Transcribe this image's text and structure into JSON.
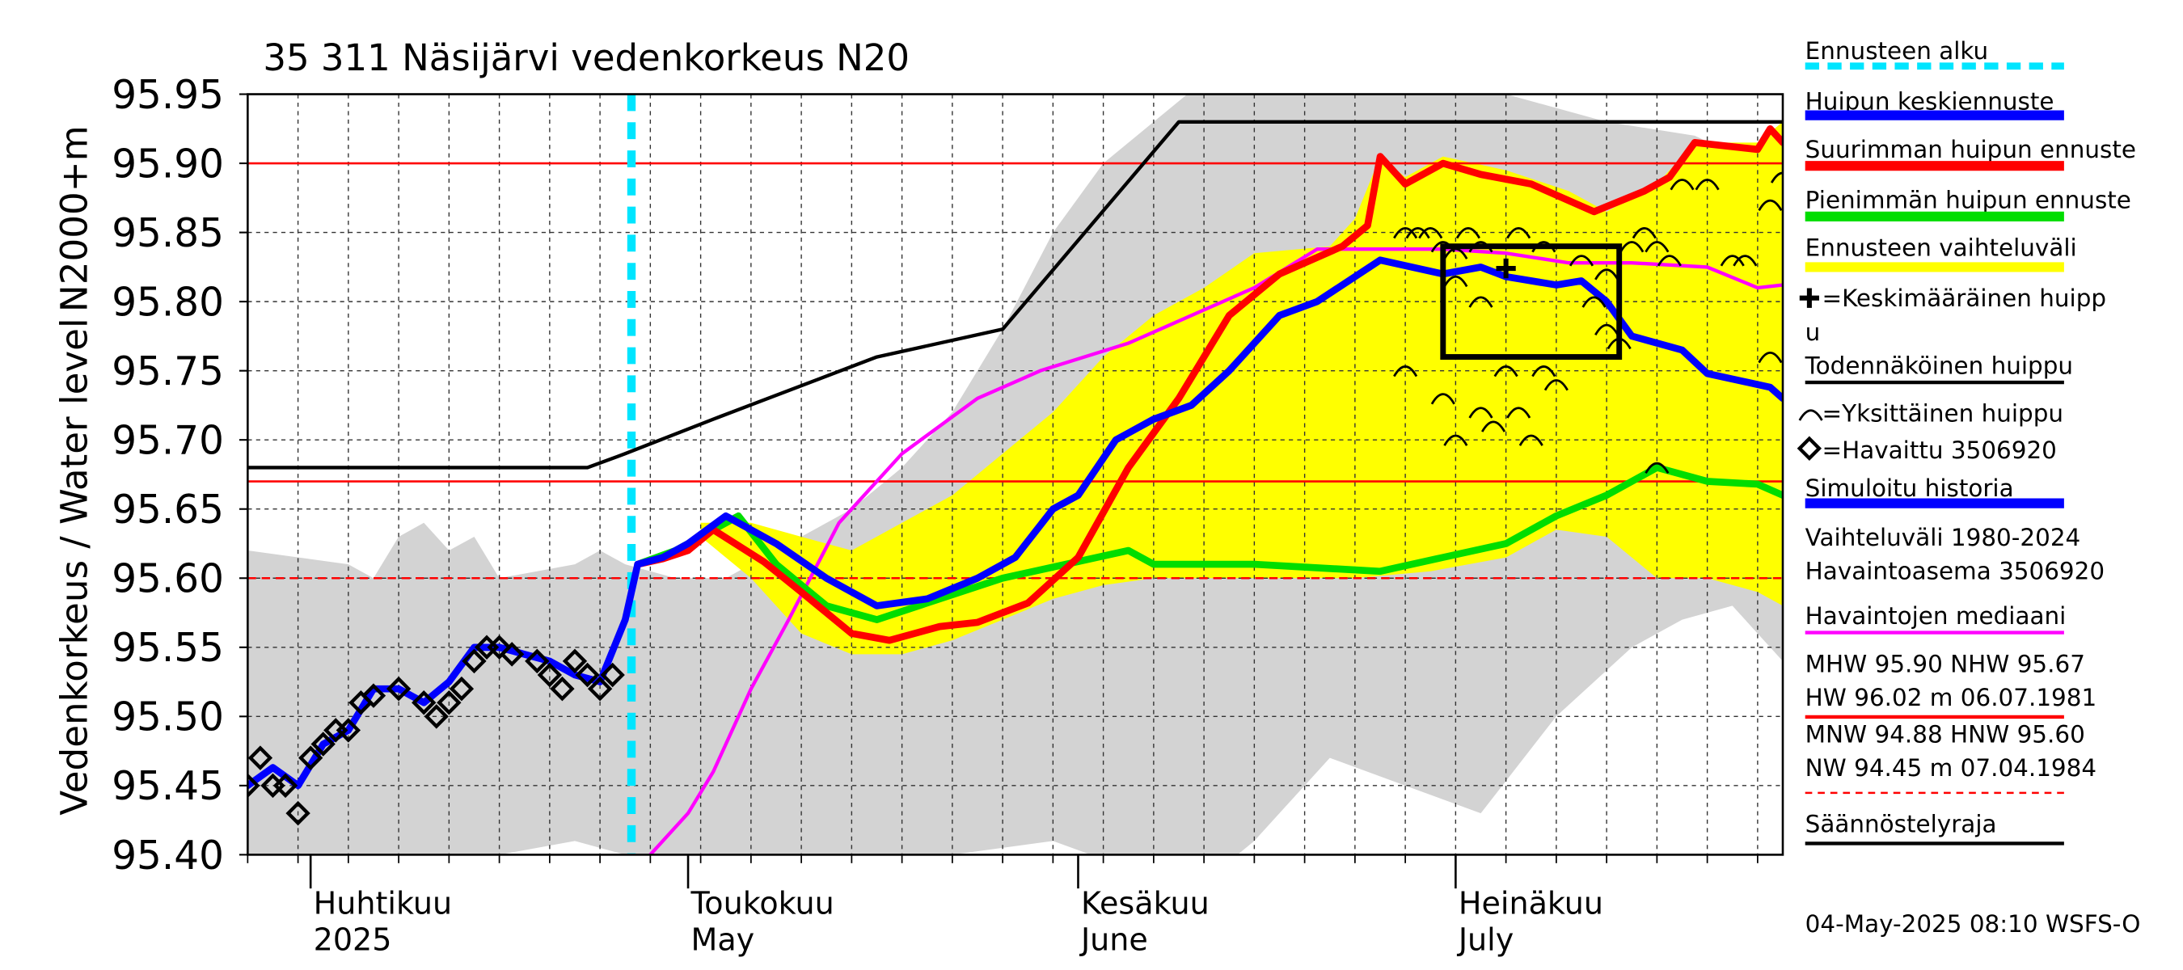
{
  "chart_data": {
    "type": "line",
    "title": "35 311 Näsijärvi vedenkorkeus N20",
    "ylabel_left": "Vedenkorkeus / Water level",
    "ylabel_right": "N2000+m",
    "ylim": [
      95.4,
      95.95
    ],
    "yticks": [
      "95.40",
      "95.45",
      "95.50",
      "95.55",
      "95.60",
      "95.65",
      "95.70",
      "95.75",
      "95.80",
      "95.85",
      "95.90",
      "95.95"
    ],
    "xlim_days": [
      0,
      122
    ],
    "x_unit": "days since 2025-03-27",
    "month_starts": [
      5,
      35,
      66,
      96
    ],
    "month_labels_fi": [
      "Huhtikuu",
      "Toukokuu",
      "Kesäkuu",
      "Heinäkuu"
    ],
    "month_labels_en": [
      "2025",
      "May",
      "June",
      "July"
    ],
    "forecast_start_day": 30.5,
    "ref_lines": {
      "MHW": 95.9,
      "NHW": 95.67,
      "HNW": 95.6
    },
    "series": [
      {
        "name": "Simuloitu historia",
        "color": "#0000ff",
        "points": [
          [
            0,
            95.45
          ],
          [
            2,
            95.463
          ],
          [
            4,
            95.45
          ],
          [
            6,
            95.48
          ],
          [
            8,
            95.49
          ],
          [
            10,
            95.52
          ],
          [
            12,
            95.52
          ],
          [
            14,
            95.51
          ],
          [
            16,
            95.525
          ],
          [
            18,
            95.55
          ],
          [
            20,
            95.55
          ],
          [
            22,
            95.545
          ],
          [
            24,
            95.54
          ],
          [
            26,
            95.53
          ],
          [
            28,
            95.525
          ],
          [
            30,
            95.57
          ],
          [
            31,
            95.61
          ],
          [
            33,
            95.615
          ],
          [
            35,
            95.625
          ],
          [
            38,
            95.645
          ],
          [
            42,
            95.625
          ],
          [
            46,
            95.6
          ],
          [
            50,
            95.58
          ],
          [
            54,
            95.585
          ],
          [
            58,
            95.6
          ],
          [
            61,
            95.615
          ],
          [
            64,
            95.65
          ],
          [
            66,
            95.66
          ],
          [
            69,
            95.7
          ],
          [
            72,
            95.715
          ],
          [
            75,
            95.725
          ],
          [
            78,
            95.75
          ],
          [
            82,
            95.79
          ],
          [
            85,
            95.8
          ],
          [
            90,
            95.83
          ],
          [
            95,
            95.82
          ],
          [
            98,
            95.825
          ],
          [
            100,
            95.818
          ],
          [
            104,
            95.812
          ],
          [
            106,
            95.815
          ],
          [
            108,
            95.8
          ],
          [
            110,
            95.775
          ],
          [
            114,
            95.765
          ],
          [
            116,
            95.748
          ],
          [
            121,
            95.738
          ],
          [
            122,
            95.73
          ]
        ]
      },
      {
        "name": "Suurimman huipun ennuste",
        "color": "#ff0000",
        "points": [
          [
            31,
            95.61
          ],
          [
            33,
            95.614
          ],
          [
            35,
            95.62
          ],
          [
            37,
            95.635
          ],
          [
            41,
            95.612
          ],
          [
            44,
            95.59
          ],
          [
            48,
            95.56
          ],
          [
            51,
            95.555
          ],
          [
            55,
            95.565
          ],
          [
            58,
            95.568
          ],
          [
            62,
            95.582
          ],
          [
            66,
            95.615
          ],
          [
            70,
            95.68
          ],
          [
            74,
            95.73
          ],
          [
            78,
            95.79
          ],
          [
            82,
            95.82
          ],
          [
            87,
            95.84
          ],
          [
            89,
            95.855
          ],
          [
            90,
            95.905
          ],
          [
            92,
            95.885
          ],
          [
            95,
            95.9
          ],
          [
            98,
            95.892
          ],
          [
            102,
            95.885
          ],
          [
            107,
            95.865
          ],
          [
            111,
            95.88
          ],
          [
            113,
            95.89
          ],
          [
            115,
            95.915
          ],
          [
            120,
            95.91
          ],
          [
            121,
            95.925
          ],
          [
            122,
            95.915
          ]
        ]
      },
      {
        "name": "Pienimmän huipun ennuste",
        "color": "#00dd00",
        "points": [
          [
            31,
            95.61
          ],
          [
            34,
            95.62
          ],
          [
            36,
            95.63
          ],
          [
            39,
            95.645
          ],
          [
            42,
            95.61
          ],
          [
            46,
            95.58
          ],
          [
            50,
            95.57
          ],
          [
            55,
            95.585
          ],
          [
            60,
            95.6
          ],
          [
            65,
            95.61
          ],
          [
            70,
            95.62
          ],
          [
            72,
            95.61
          ],
          [
            80,
            95.61
          ],
          [
            90,
            95.605
          ],
          [
            95,
            95.615
          ],
          [
            100,
            95.625
          ],
          [
            104,
            95.645
          ],
          [
            108,
            95.66
          ],
          [
            112,
            95.68
          ],
          [
            116,
            95.67
          ],
          [
            120,
            95.668
          ],
          [
            122,
            95.66
          ]
        ]
      },
      {
        "name": "Havaintojen mediaani",
        "color": "#ff00ff",
        "points": [
          [
            31,
            95.39
          ],
          [
            35,
            95.43
          ],
          [
            37,
            95.46
          ],
          [
            40,
            95.52
          ],
          [
            43,
            95.57
          ],
          [
            47,
            95.64
          ],
          [
            52,
            95.69
          ],
          [
            58,
            95.73
          ],
          [
            63,
            95.75
          ],
          [
            70,
            95.77
          ],
          [
            80,
            95.81
          ],
          [
            85,
            95.838
          ],
          [
            95,
            95.838
          ],
          [
            100,
            95.835
          ],
          [
            105,
            95.828
          ],
          [
            110,
            95.828
          ],
          [
            116,
            95.825
          ],
          [
            120,
            95.81
          ],
          [
            122,
            95.812
          ]
        ]
      },
      {
        "name": "Todennäköinen huippu",
        "color": "#000000",
        "points": [
          [
            0,
            95.68
          ],
          [
            27,
            95.68
          ],
          [
            30,
            95.69
          ],
          [
            37,
            95.715
          ],
          [
            50,
            95.76
          ],
          [
            60,
            95.78
          ],
          [
            74,
            95.93
          ],
          [
            122,
            95.93
          ]
        ]
      }
    ],
    "observed": {
      "name": "Havaittu 3506920",
      "points": [
        [
          0,
          95.45
        ],
        [
          1,
          95.47
        ],
        [
          2,
          95.45
        ],
        [
          3,
          95.45
        ],
        [
          4,
          95.43
        ],
        [
          5,
          95.47
        ],
        [
          6,
          95.48
        ],
        [
          7,
          95.49
        ],
        [
          8,
          95.49
        ],
        [
          9,
          95.51
        ],
        [
          10,
          95.515
        ],
        [
          12,
          95.52
        ],
        [
          14,
          95.51
        ],
        [
          15,
          95.5
        ],
        [
          16,
          95.51
        ],
        [
          17,
          95.52
        ],
        [
          18,
          95.54
        ],
        [
          19,
          95.55
        ],
        [
          20,
          95.55
        ],
        [
          21,
          95.545
        ],
        [
          23,
          95.54
        ],
        [
          24,
          95.53
        ],
        [
          25,
          95.52
        ],
        [
          26,
          95.54
        ],
        [
          27,
          95.53
        ],
        [
          28,
          95.52
        ],
        [
          29,
          95.53
        ]
      ]
    },
    "individual_peaks": [
      [
        92,
        95.85
      ],
      [
        93,
        95.85
      ],
      [
        94,
        95.85
      ],
      [
        95,
        95.84
      ],
      [
        96,
        95.835
      ],
      [
        97,
        95.85
      ],
      [
        98,
        95.84
      ],
      [
        101,
        95.85
      ],
      [
        103,
        95.84
      ],
      [
        106,
        95.83
      ],
      [
        108,
        95.82
      ],
      [
        110,
        95.84
      ],
      [
        111,
        95.85
      ],
      [
        112,
        95.84
      ],
      [
        113,
        95.83
      ],
      [
        114,
        95.885
      ],
      [
        116,
        95.885
      ],
      [
        118,
        95.83
      ],
      [
        119,
        95.83
      ],
      [
        121,
        95.87
      ],
      [
        122,
        95.89
      ],
      [
        96,
        95.815
      ],
      [
        98,
        95.8
      ],
      [
        107,
        95.8
      ],
      [
        108,
        95.78
      ],
      [
        92,
        95.75
      ],
      [
        95,
        95.73
      ],
      [
        96,
        95.7
      ],
      [
        98,
        95.72
      ],
      [
        99,
        95.71
      ],
      [
        100,
        95.75
      ],
      [
        101,
        95.72
      ],
      [
        102,
        95.7
      ],
      [
        103,
        95.75
      ],
      [
        104,
        95.74
      ],
      [
        109,
        95.77
      ],
      [
        121,
        95.76
      ],
      [
        112,
        95.68
      ]
    ],
    "mean_peak": [
      100,
      95.824
    ],
    "peak_box": {
      "x": [
        95,
        109
      ],
      "y": [
        95.76,
        95.84
      ]
    },
    "bands": {
      "history_range": {
        "name": "Vaihteluväli 1980-2024",
        "color": "#d3d3d3",
        "upper": [
          [
            0,
            95.62
          ],
          [
            8,
            95.61
          ],
          [
            10,
            95.6
          ],
          [
            12,
            95.63
          ],
          [
            14,
            95.64
          ],
          [
            16,
            95.62
          ],
          [
            18,
            95.63
          ],
          [
            20,
            95.6
          ],
          [
            26,
            95.61
          ],
          [
            28,
            95.62
          ],
          [
            30,
            95.61
          ],
          [
            34,
            95.6
          ],
          [
            38,
            95.6
          ],
          [
            42,
            95.62
          ],
          [
            48,
            95.65
          ],
          [
            52,
            95.68
          ],
          [
            56,
            95.72
          ],
          [
            60,
            95.78
          ],
          [
            64,
            95.85
          ],
          [
            68,
            95.9
          ],
          [
            72,
            95.93
          ],
          [
            76,
            95.96
          ],
          [
            80,
            95.97
          ],
          [
            90,
            95.97
          ],
          [
            100,
            95.95
          ],
          [
            108,
            95.93
          ],
          [
            115,
            95.92
          ],
          [
            122,
            95.89
          ]
        ],
        "lower": [
          [
            0,
            95.4
          ],
          [
            10,
            95.4
          ],
          [
            20,
            95.4
          ],
          [
            26,
            95.41
          ],
          [
            30,
            95.4
          ],
          [
            34,
            95.4
          ],
          [
            40,
            95.4
          ],
          [
            48,
            95.4
          ],
          [
            56,
            95.4
          ],
          [
            64,
            95.41
          ],
          [
            70,
            95.39
          ],
          [
            76,
            95.38
          ],
          [
            80,
            95.41
          ],
          [
            86,
            95.47
          ],
          [
            92,
            95.45
          ],
          [
            98,
            95.43
          ],
          [
            104,
            95.5
          ],
          [
            110,
            95.55
          ],
          [
            114,
            95.57
          ],
          [
            118,
            95.58
          ],
          [
            122,
            95.54
          ]
        ]
      },
      "forecast_range": {
        "name": "Ennusteen vaihteluväli",
        "color": "#ffff00",
        "upper": [
          [
            36,
            95.64
          ],
          [
            40,
            95.64
          ],
          [
            44,
            95.63
          ],
          [
            48,
            95.62
          ],
          [
            52,
            95.64
          ],
          [
            56,
            95.66
          ],
          [
            60,
            95.69
          ],
          [
            64,
            95.72
          ],
          [
            68,
            95.76
          ],
          [
            72,
            95.79
          ],
          [
            76,
            95.81
          ],
          [
            80,
            95.835
          ],
          [
            86,
            95.84
          ],
          [
            88,
            95.86
          ],
          [
            90,
            95.905
          ],
          [
            92,
            95.89
          ],
          [
            95,
            95.905
          ],
          [
            100,
            95.895
          ],
          [
            105,
            95.88
          ],
          [
            108,
            95.865
          ],
          [
            112,
            95.885
          ],
          [
            115,
            95.915
          ],
          [
            120,
            95.915
          ],
          [
            122,
            95.93
          ]
        ],
        "lower": [
          [
            36,
            95.63
          ],
          [
            40,
            95.6
          ],
          [
            44,
            95.56
          ],
          [
            48,
            95.545
          ],
          [
            52,
            95.545
          ],
          [
            56,
            95.555
          ],
          [
            60,
            95.57
          ],
          [
            64,
            95.585
          ],
          [
            68,
            95.595
          ],
          [
            72,
            95.6
          ],
          [
            76,
            95.6
          ],
          [
            82,
            95.6
          ],
          [
            88,
            95.6
          ],
          [
            94,
            95.605
          ],
          [
            100,
            95.615
          ],
          [
            104,
            95.635
          ],
          [
            108,
            95.63
          ],
          [
            112,
            95.6
          ],
          [
            116,
            95.6
          ],
          [
            120,
            95.59
          ],
          [
            122,
            95.58
          ]
        ]
      }
    },
    "legend": [
      {
        "label": "Ennusteen alku",
        "style": "dash",
        "color": "#00e5ff"
      },
      {
        "label": "Huipun keskiennuste",
        "style": "line",
        "color": "#0000ff"
      },
      {
        "label": "Suurimman huipun ennuste",
        "style": "line",
        "color": "#ff0000"
      },
      {
        "label": "Pienimmän huipun ennuste",
        "style": "line",
        "color": "#00dd00"
      },
      {
        "label": "Ennusteen vaihteluväli",
        "style": "line",
        "color": "#ffff00"
      },
      {
        "label": "=Keskimääräinen huipp",
        "label2": "u",
        "style": "plus"
      },
      {
        "label": "Todennäköinen huippu",
        "style": "thinline",
        "color": "#000000"
      },
      {
        "label": "=Yksittäinen huippu",
        "style": "arc"
      },
      {
        "label": "=Havaittu 3506920",
        "style": "diamond"
      },
      {
        "label": "Simuloitu historia",
        "style": "line",
        "color": "#0000ff"
      },
      {
        "label": "Vaihteluväli 1980-2024",
        "label2": " Havaintoasema 3506920",
        "style": "none"
      },
      {
        "label": "Havaintojen mediaani",
        "style": "thinline",
        "color": "#ff00ff"
      },
      {
        "label": "MHW  95.90 NHW  95.67",
        "label2": "HW  96.02 m 06.07.1981",
        "style": "thinline",
        "color": "#ff0000"
      },
      {
        "label": "MNW  94.88 HNW  95.60",
        "label2": "NW  94.45 m 07.04.1984",
        "style": "dashed",
        "color": "#ff0000"
      },
      {
        "label": "Säännöstelyraja",
        "style": "thinline",
        "color": "#000000"
      }
    ],
    "timestamp": "04-May-2025 08:10 WSFS-O"
  }
}
